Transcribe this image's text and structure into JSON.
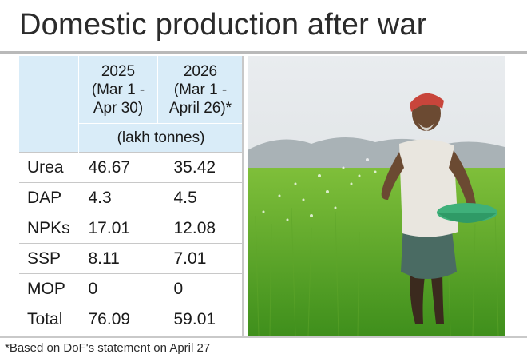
{
  "title": "Domestic production after war",
  "chart_data": {
    "type": "table",
    "columns": [
      {
        "label_lines": [
          "2025",
          "(Mar 1 -",
          "Apr 30)"
        ]
      },
      {
        "label_lines": [
          "2026",
          "(Mar 1 -",
          "April 26)*"
        ]
      }
    ],
    "unit": "(lakh tonnes)",
    "rows": [
      {
        "name": "Urea",
        "values": [
          "46.67",
          "35.42"
        ]
      },
      {
        "name": "DAP",
        "values": [
          "4.3",
          "4.5"
        ]
      },
      {
        "name": "NPKs",
        "values": [
          "17.01",
          "12.08"
        ]
      },
      {
        "name": "SSP",
        "values": [
          "8.11",
          "7.01"
        ]
      },
      {
        "name": "MOP",
        "values": [
          "0",
          "0"
        ]
      },
      {
        "name": "Total",
        "values": [
          "76.09",
          "59.01"
        ]
      }
    ]
  },
  "footnote": "*Based on DoF's statement on April 27",
  "colors": {
    "header_bg": "#d9ecf8",
    "rule": "#c8c8c8"
  }
}
